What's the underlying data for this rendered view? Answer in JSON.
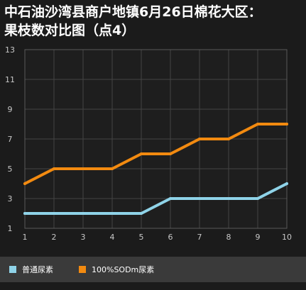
{
  "chart_data": {
    "type": "line",
    "title": "中石油沙湾县商户地镇6月26日棉花大区：果枝数对比图（点4）",
    "title_lines": [
      "中石油沙湾县商户地镇6月26日棉花大区：",
      "果枝数对比图（点4）"
    ],
    "x": [
      1,
      2,
      3,
      4,
      5,
      6,
      7,
      8,
      9,
      10
    ],
    "x_ticks": [
      "1",
      "2",
      "3",
      "4",
      "5",
      "6",
      "7",
      "8",
      "9",
      "10"
    ],
    "y_ticks": [
      "1",
      "3",
      "5",
      "7",
      "9",
      "11",
      "13"
    ],
    "ylim": [
      1,
      13
    ],
    "grid": true,
    "legend": "bottom",
    "series": [
      {
        "name": "普通尿素",
        "color": "#8fd3e8",
        "values": [
          2,
          2,
          2,
          2,
          2,
          3,
          3,
          3,
          3,
          4
        ]
      },
      {
        "name": "100%SODm尿素",
        "color": "#f28a10",
        "values": [
          4,
          5,
          5,
          5,
          6,
          6,
          7,
          7,
          8,
          8
        ]
      }
    ]
  }
}
